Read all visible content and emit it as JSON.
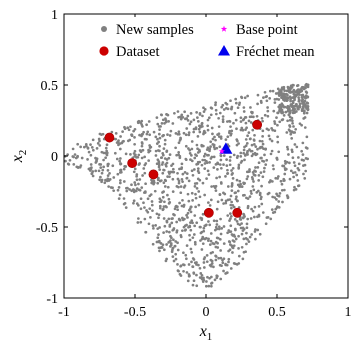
{
  "chart_data": {
    "type": "scatter",
    "xlabel": "x",
    "xlabel_sub": "1",
    "ylabel": "x",
    "ylabel_sub": "2",
    "xlim": [
      -1,
      1
    ],
    "ylim": [
      -1,
      1
    ],
    "xticks": [
      -1,
      -0.5,
      0,
      0.5,
      1
    ],
    "xtick_labels": [
      "-1",
      "-0.5",
      "0",
      "0.5",
      "1"
    ],
    "yticks": [
      -1,
      -0.5,
      0,
      0.5,
      1
    ],
    "ytick_labels": [
      "-1",
      "-0.5",
      "0",
      "0.5",
      "1"
    ],
    "grid": false,
    "legend_position": "top",
    "series": [
      {
        "name": "New samples",
        "marker": "dot",
        "color": "#808080",
        "count": 1400,
        "description": "dense gray point cloud filling the region between the outer and lower boundary curves"
      },
      {
        "name": "Dataset",
        "marker": "circle",
        "color": "#cc0000",
        "points": [
          {
            "x": -0.68,
            "y": 0.13
          },
          {
            "x": -0.52,
            "y": -0.05
          },
          {
            "x": -0.37,
            "y": -0.13
          },
          {
            "x": 0.02,
            "y": -0.4
          },
          {
            "x": 0.22,
            "y": -0.4
          },
          {
            "x": 0.36,
            "y": 0.22
          }
        ]
      },
      {
        "name": "Base point",
        "marker": "star",
        "color": "#ff00ff",
        "points": [
          {
            "x": 0.14,
            "y": 0.04
          }
        ]
      },
      {
        "name": "Fréchet mean",
        "marker": "triangle",
        "color": "#0000ee",
        "points": [
          {
            "x": 0.14,
            "y": 0.05
          }
        ]
      }
    ]
  }
}
